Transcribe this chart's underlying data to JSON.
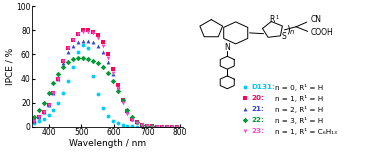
{
  "xlabel": "Wavelength / nm",
  "ylabel": "IPCE / %",
  "xlim": [
    350,
    810
  ],
  "ylim": [
    0,
    100
  ],
  "xticks": [
    400,
    500,
    600,
    700,
    800
  ],
  "yticks": [
    0,
    20,
    40,
    60,
    80,
    100
  ],
  "series": [
    {
      "key": "D131",
      "color": "#00CCFF",
      "marker": "o",
      "x": [
        355,
        370,
        385,
        400,
        415,
        430,
        445,
        460,
        475,
        490,
        505,
        520,
        535,
        550,
        565,
        580,
        595,
        610,
        625,
        640,
        655,
        670,
        685,
        700,
        715,
        730
      ],
      "y": [
        3,
        5,
        7,
        10,
        14,
        20,
        28,
        38,
        50,
        62,
        68,
        65,
        42,
        27,
        16,
        9,
        5,
        3,
        2,
        1,
        0.5,
        0,
        0,
        0,
        0,
        0
      ]
    },
    {
      "key": "20",
      "color": "#FF0055",
      "marker": "s",
      "x": [
        355,
        370,
        385,
        400,
        415,
        430,
        445,
        460,
        475,
        490,
        505,
        520,
        535,
        550,
        565,
        580,
        595,
        610,
        625,
        640,
        655,
        670,
        685,
        700,
        715,
        730,
        745,
        760,
        775,
        790
      ],
      "y": [
        5,
        8,
        12,
        18,
        28,
        40,
        55,
        65,
        72,
        77,
        80,
        80,
        79,
        76,
        70,
        60,
        48,
        35,
        22,
        13,
        7,
        4,
        2,
        1,
        0.5,
        0,
        0,
        0,
        0,
        0
      ]
    },
    {
      "key": "21",
      "color": "#3344CC",
      "marker": "^",
      "x": [
        355,
        370,
        385,
        400,
        415,
        430,
        445,
        460,
        475,
        490,
        505,
        520,
        535,
        550,
        565,
        580,
        595,
        610,
        625,
        640,
        655,
        670,
        685,
        700,
        715,
        730,
        745,
        760,
        775,
        790
      ],
      "y": [
        5,
        8,
        12,
        18,
        28,
        40,
        53,
        62,
        67,
        70,
        71,
        71,
        70,
        67,
        62,
        54,
        44,
        33,
        22,
        13,
        7,
        4,
        2,
        1,
        0.5,
        0,
        0,
        0,
        0,
        0
      ]
    },
    {
      "key": "22",
      "color": "#009933",
      "marker": "D",
      "x": [
        355,
        370,
        385,
        400,
        415,
        430,
        445,
        460,
        475,
        490,
        505,
        520,
        535,
        550,
        565,
        580,
        595,
        610,
        625,
        640,
        655,
        670,
        685,
        700,
        715,
        730,
        745,
        760,
        775,
        790
      ],
      "y": [
        8,
        14,
        20,
        28,
        36,
        44,
        50,
        54,
        56,
        57,
        57,
        56,
        55,
        53,
        50,
        45,
        38,
        30,
        22,
        14,
        8,
        4,
        2,
        1,
        0.5,
        0,
        0,
        0,
        0,
        0
      ]
    },
    {
      "key": "23",
      "color": "#FF44CC",
      "marker": "v",
      "x": [
        355,
        370,
        385,
        400,
        415,
        430,
        445,
        460,
        475,
        490,
        505,
        520,
        535,
        550,
        565,
        580,
        595,
        610,
        625,
        640,
        655,
        670,
        685,
        700,
        715,
        730,
        745,
        760,
        775,
        790
      ],
      "y": [
        5,
        8,
        12,
        18,
        28,
        40,
        55,
        65,
        72,
        77,
        79,
        79,
        78,
        74,
        67,
        57,
        45,
        32,
        20,
        11,
        6,
        3,
        1.5,
        0.5,
        0,
        0,
        0,
        0,
        0,
        0
      ]
    }
  ],
  "legend_entries": [
    {
      "name": "D131",
      "desc": "n = 0, R¹ = H",
      "color": "#00CCFF",
      "marker": "o"
    },
    {
      "name": "20",
      "desc": "n = 1, R¹ = H",
      "color": "#FF0055",
      "marker": "s"
    },
    {
      "name": "21",
      "desc": "n = 2, R¹ = H",
      "color": "#3344CC",
      "marker": "^"
    },
    {
      "name": "22",
      "desc": "n = 3, R¹ = H",
      "color": "#009933",
      "marker": "D"
    },
    {
      "name": "23",
      "desc": "n = 1, R¹ = C₆H₁₃",
      "color": "#FF44CC",
      "marker": "v"
    }
  ],
  "figure_bg": "#ffffff",
  "tick_fontsize": 5.5,
  "label_fontsize": 6.5,
  "legend_fontsize": 5.2,
  "markersize": 2.8
}
